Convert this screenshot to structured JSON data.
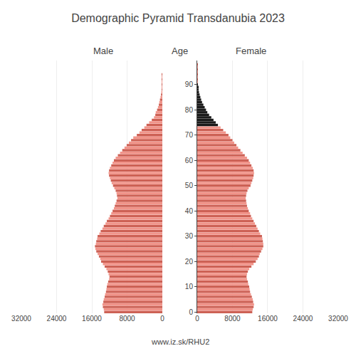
{
  "chart_data": {
    "type": "bar",
    "orientation": "horizontal",
    "title": "Demographic Pyramid Transdanubia 2023",
    "ylabel": "Age",
    "annotations": [
      "www.iz.sk/RHU2"
    ],
    "categories": [
      "0",
      null,
      null,
      null,
      null,
      null,
      null,
      null,
      null,
      null,
      "10",
      null,
      null,
      null,
      null,
      null,
      null,
      null,
      null,
      null,
      "20",
      null,
      null,
      null,
      null,
      null,
      null,
      null,
      null,
      null,
      "30",
      null,
      null,
      null,
      null,
      null,
      null,
      null,
      null,
      null,
      "40",
      null,
      null,
      null,
      null,
      null,
      null,
      null,
      null,
      null,
      "50",
      null,
      null,
      null,
      null,
      null,
      null,
      null,
      null,
      null,
      "60",
      null,
      null,
      null,
      null,
      null,
      null,
      null,
      null,
      null,
      "70",
      null,
      null,
      null,
      null,
      null,
      null,
      null,
      null,
      null,
      "80",
      null,
      null,
      null,
      null,
      null,
      null,
      null,
      null,
      null,
      "90",
      null,
      null,
      null,
      null,
      null,
      null,
      null,
      null,
      null
    ],
    "xlim": [
      0,
      32000
    ],
    "xticks": [
      0,
      8000,
      16000,
      24000,
      32000
    ],
    "series": [
      {
        "name": "Male",
        "colors": [
          "#cd6155",
          "#f1948a",
          "#cd6155",
          "#f1948a",
          "#cd6155",
          "#f1948a",
          "#cd6155",
          "#f1948a",
          "#cd6155",
          "#f1948a",
          "#cd6155",
          "#f1948a",
          "#cd6155",
          "#f1948a",
          "#cd6155",
          "#f1948a",
          "#cd6155",
          "#f1948a",
          "#cd6155",
          "#f1948a",
          "#cd6155",
          "#f1948a",
          "#cd6155",
          "#f1948a",
          "#cd6155",
          "#f1948a",
          "#cd6155",
          "#f1948a",
          "#cd6155",
          "#f1948a",
          "#cd6155",
          "#f1948a",
          "#cd6155",
          "#f1948a",
          "#cd6155",
          "#f1948a",
          "#cd6155",
          "#f1948a",
          "#cd6155",
          "#f1948a",
          "#cd6155",
          "#f1948a",
          "#cd6155",
          "#f1948a",
          "#cd6155",
          "#f1948a",
          "#cd6155",
          "#f1948a",
          "#cd6155",
          "#f1948a",
          "#cd6155",
          "#f1948a",
          "#cd6155",
          "#f1948a",
          "#cd6155",
          "#f1948a",
          "#cd6155",
          "#f1948a",
          "#cd6155",
          "#f1948a",
          "#cd6155",
          "#f1948a",
          "#cd6155",
          "#f1948a",
          "#cd6155",
          "#f1948a",
          "#cd6155",
          "#f1948a",
          "#cd6155",
          "#f1948a",
          "#cd6155",
          "#f1948a",
          "#cd6155",
          "#f1948a",
          "#cd6155",
          "#f1948a",
          "#cd6155",
          "#f1948a",
          "#cd6155",
          "#f1948a",
          "#cd6155",
          "#f1948a",
          "#cd6155",
          "#f1948a",
          "#cd6155",
          "#f1948a",
          "#cd6155",
          "#f1948a",
          "#cd6155",
          "#f1948a",
          "#cd6155",
          "#f1948a",
          "#cd6155",
          "#f1948a",
          "#cd6155",
          "#f1948a",
          "#cd6155",
          "#f1948a",
          "#cd6155",
          "#f1948a"
        ],
        "values": [
          13200,
          13300,
          13500,
          13600,
          13400,
          13300,
          13100,
          13000,
          12800,
          12700,
          12600,
          12500,
          12300,
          12100,
          12000,
          12200,
          12400,
          12700,
          13100,
          13500,
          13900,
          14100,
          14400,
          14700,
          15000,
          15200,
          15300,
          15100,
          15000,
          14800,
          14700,
          14300,
          14000,
          13600,
          13300,
          12900,
          12600,
          12200,
          11900,
          11600,
          11300,
          11000,
          10800,
          10600,
          10400,
          10200,
          10300,
          10400,
          10600,
          10900,
          11200,
          11500,
          11700,
          11900,
          12100,
          12200,
          12100,
          11900,
          11600,
          11300,
          11000,
          10600,
          10100,
          9600,
          9100,
          8600,
          8100,
          7600,
          7100,
          6600,
          5800,
          5200,
          4700,
          4100,
          3600,
          3000,
          2400,
          1900,
          1600,
          1500,
          1200,
          1000,
          800,
          700,
          550,
          420,
          300,
          220,
          150,
          90,
          55,
          32,
          18,
          10,
          6,
          3,
          2,
          1,
          0,
          0
        ]
      },
      {
        "name": "Female",
        "colors": [
          "#cd6155",
          "#f1948a",
          "#cd6155",
          "#f1948a",
          "#cd6155",
          "#f1948a",
          "#cd6155",
          "#f1948a",
          "#cd6155",
          "#f1948a",
          "#cd6155",
          "#f1948a",
          "#cd6155",
          "#f1948a",
          "#cd6155",
          "#f1948a",
          "#cd6155",
          "#f1948a",
          "#cd6155",
          "#f1948a",
          "#cd6155",
          "#f1948a",
          "#cd6155",
          "#f1948a",
          "#cd6155",
          "#f1948a",
          "#cd6155",
          "#f1948a",
          "#cd6155",
          "#f1948a",
          "#cd6155",
          "#f1948a",
          "#cd6155",
          "#f1948a",
          "#cd6155",
          "#f1948a",
          "#cd6155",
          "#f1948a",
          "#cd6155",
          "#f1948a",
          "#cd6155",
          "#f1948a",
          "#cd6155",
          "#f1948a",
          "#cd6155",
          "#f1948a",
          "#cd6155",
          "#f1948a",
          "#cd6155",
          "#f1948a",
          "#cd6155",
          "#f1948a",
          "#cd6155",
          "#f1948a",
          "#cd6155",
          "#f1948a",
          "#cd6155",
          "#f1948a",
          "#cd6155",
          "#f1948a",
          "#cd6155",
          "#f1948a",
          "#cd6155",
          "#f1948a",
          "#cd6155",
          "#f1948a",
          "#cd6155",
          "#f1948a",
          "#cd6155",
          "#f1948a",
          "#cd6155",
          "#f1948a",
          "#cd6155",
          "#f1948a",
          "#1a1a1a",
          "#1a1a1a",
          "#1a1a1a",
          "#1a1a1a",
          "#1a1a1a",
          "#1a1a1a",
          "#1a1a1a",
          "#1a1a1a",
          "#1a1a1a",
          "#1a1a1a",
          "#1a1a1a",
          "#1a1a1a",
          "#1a1a1a",
          "#1a1a1a",
          "#1a1a1a",
          "#1a1a1a",
          "#1a1a1a",
          "#f1948a",
          "#cd6155",
          "#f1948a",
          "#cd6155",
          "#f1948a",
          "#cd6155",
          "#f1948a",
          "#cd6155",
          "#f1948a"
        ],
        "values": [
          12500,
          12600,
          12800,
          12900,
          12700,
          12600,
          12400,
          12200,
          12000,
          11900,
          11800,
          11600,
          11500,
          11300,
          11200,
          11300,
          11500,
          11800,
          12300,
          12800,
          13300,
          13700,
          14000,
          14200,
          14500,
          14800,
          15000,
          15000,
          14900,
          14800,
          14700,
          14300,
          14000,
          13700,
          13400,
          13100,
          12800,
          12500,
          12200,
          12000,
          11700,
          11500,
          11300,
          11200,
          11100,
          11000,
          11100,
          11200,
          11400,
          11700,
          12100,
          12300,
          12500,
          12700,
          12800,
          12900,
          12800,
          12600,
          12300,
          12000,
          11700,
          11300,
          10800,
          10300,
          9800,
          9300,
          8900,
          8400,
          8000,
          7500,
          7100,
          6500,
          5900,
          5300,
          4700,
          4200,
          3700,
          3200,
          2700,
          2300,
          2000,
          1700,
          1400,
          1100,
          900,
          720,
          550,
          400,
          280,
          180,
          110,
          65,
          38,
          22,
          13,
          7,
          4,
          2,
          1,
          0
        ]
      }
    ]
  }
}
